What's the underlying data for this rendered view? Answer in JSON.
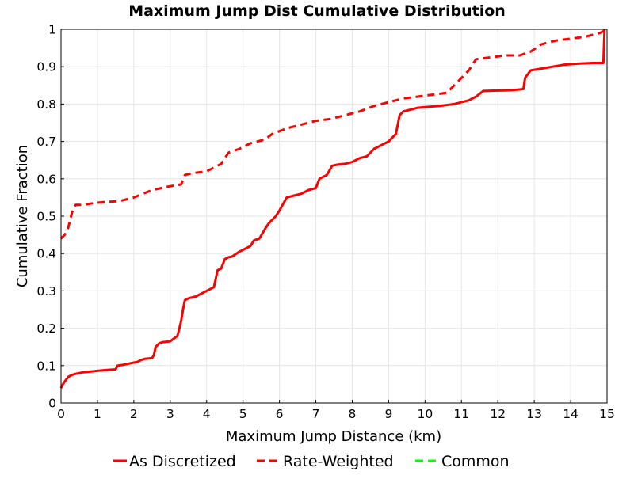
{
  "chart_data": {
    "type": "line",
    "title": "Maximum Jump Dist Cumulative Distribution",
    "xlabel": "Maximum Jump Distance (km)",
    "ylabel": "Cumulative Fraction",
    "xlim": [
      0,
      15
    ],
    "ylim": [
      0,
      1
    ],
    "xticks": [
      "0",
      "1",
      "2",
      "3",
      "4",
      "5",
      "6",
      "7",
      "8",
      "9",
      "10",
      "11",
      "12",
      "13",
      "14",
      "15"
    ],
    "yticks": [
      "0",
      "0.1",
      "0.2",
      "0.3",
      "0.4",
      "0.5",
      "0.6",
      "0.7",
      "0.8",
      "0.9",
      "1"
    ],
    "grid": true,
    "legend": "bottom",
    "series": [
      {
        "name": "As Discretized",
        "style": "solid",
        "color": "#ff0000",
        "x": [
          0,
          0.05,
          0.12,
          0.2,
          0.3,
          0.4,
          0.5,
          0.6,
          0.8,
          1.0,
          1.2,
          1.5,
          1.55,
          1.7,
          1.85,
          2.0,
          2.1,
          2.2,
          2.3,
          2.5,
          2.55,
          2.6,
          2.7,
          2.8,
          3.0,
          3.2,
          3.3,
          3.35,
          3.4,
          3.5,
          3.7,
          3.9,
          4.0,
          4.2,
          4.3,
          4.4,
          4.5,
          4.6,
          4.7,
          4.9,
          5.0,
          5.2,
          5.3,
          5.45,
          5.6,
          5.7,
          5.8,
          5.9,
          6.0,
          6.2,
          6.4,
          6.6,
          6.8,
          7.0,
          7.1,
          7.3,
          7.45,
          7.6,
          7.8,
          8.0,
          8.2,
          8.4,
          8.6,
          8.8,
          9.0,
          9.2,
          9.3,
          9.4,
          9.6,
          9.8,
          10.0,
          10.4,
          10.8,
          11.2,
          11.4,
          11.6,
          12.0,
          12.4,
          12.7,
          12.75,
          12.9,
          13.2,
          13.5,
          13.8,
          14.2,
          14.6,
          14.9,
          14.93
        ],
        "y": [
          0.04,
          0.05,
          0.06,
          0.07,
          0.075,
          0.078,
          0.08,
          0.082,
          0.084,
          0.086,
          0.088,
          0.09,
          0.1,
          0.102,
          0.105,
          0.108,
          0.11,
          0.115,
          0.118,
          0.12,
          0.128,
          0.15,
          0.16,
          0.163,
          0.165,
          0.18,
          0.22,
          0.25,
          0.275,
          0.28,
          0.285,
          0.295,
          0.3,
          0.31,
          0.355,
          0.36,
          0.385,
          0.39,
          0.392,
          0.405,
          0.41,
          0.42,
          0.435,
          0.44,
          0.465,
          0.48,
          0.49,
          0.5,
          0.515,
          0.55,
          0.555,
          0.56,
          0.57,
          0.575,
          0.6,
          0.61,
          0.635,
          0.638,
          0.64,
          0.645,
          0.655,
          0.66,
          0.68,
          0.69,
          0.7,
          0.72,
          0.77,
          0.78,
          0.785,
          0.79,
          0.792,
          0.795,
          0.8,
          0.81,
          0.82,
          0.835,
          0.836,
          0.837,
          0.84,
          0.87,
          0.89,
          0.895,
          0.9,
          0.905,
          0.908,
          0.91,
          0.91,
          1.0
        ]
      },
      {
        "name": "Rate-Weighted",
        "style": "dashed",
        "color": "#ff0000",
        "x": [
          0,
          0.1,
          0.2,
          0.3,
          0.4,
          0.6,
          0.9,
          1.2,
          1.6,
          2.0,
          2.5,
          3.0,
          3.3,
          3.4,
          3.6,
          4.0,
          4.4,
          4.6,
          4.9,
          5.2,
          5.6,
          5.8,
          6.2,
          6.6,
          7.0,
          7.4,
          7.8,
          8.2,
          8.6,
          9.0,
          9.4,
          9.8,
          10.2,
          10.6,
          10.9,
          11.0,
          11.2,
          11.4,
          11.8,
          12.2,
          12.6,
          12.9,
          13.2,
          13.6,
          14.0,
          14.4,
          14.8,
          15.0
        ],
        "y": [
          0.44,
          0.45,
          0.47,
          0.51,
          0.53,
          0.53,
          0.535,
          0.538,
          0.54,
          0.55,
          0.57,
          0.58,
          0.585,
          0.61,
          0.615,
          0.62,
          0.64,
          0.67,
          0.68,
          0.695,
          0.705,
          0.72,
          0.735,
          0.745,
          0.755,
          0.76,
          0.77,
          0.78,
          0.795,
          0.805,
          0.815,
          0.82,
          0.825,
          0.83,
          0.86,
          0.87,
          0.89,
          0.92,
          0.925,
          0.93,
          0.93,
          0.94,
          0.96,
          0.97,
          0.975,
          0.98,
          0.99,
          1.0
        ]
      },
      {
        "name": "Common",
        "style": "dashed",
        "color": "#00ff00",
        "x": [],
        "y": []
      }
    ]
  }
}
